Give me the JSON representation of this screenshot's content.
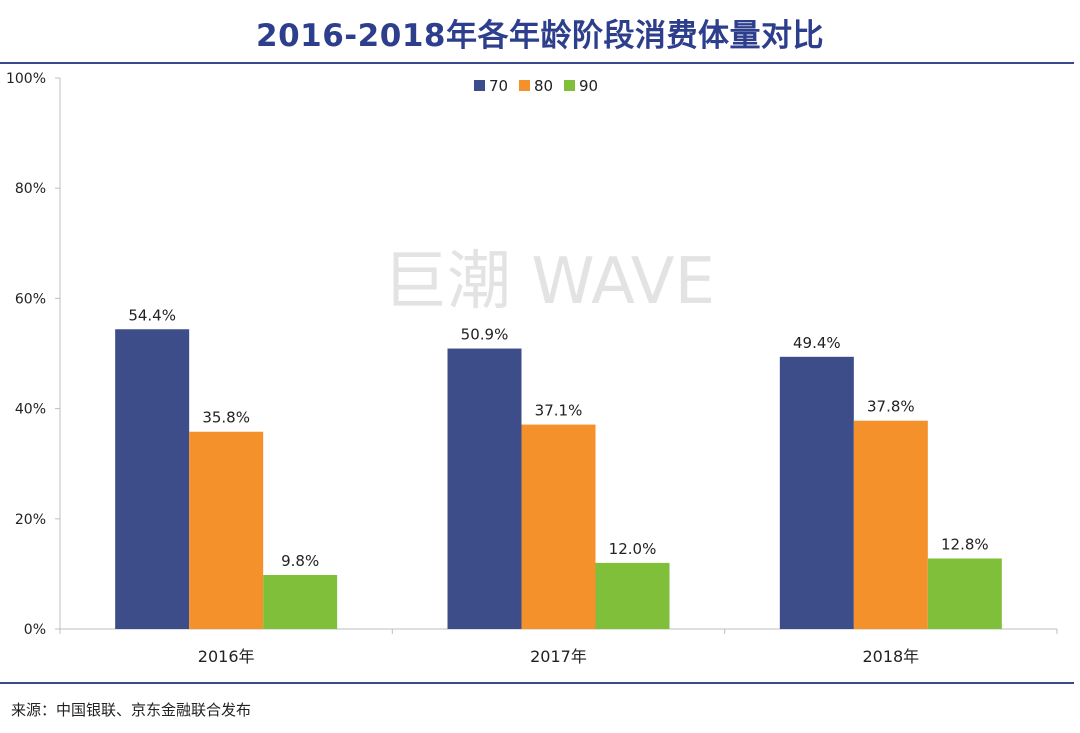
{
  "title": "2016-2018年各年龄阶段消费体量对比",
  "source": "来源：中国银联、京东金融联合发布",
  "watermark": "巨潮 WAVE",
  "colors": {
    "title": "#2d3e8c",
    "rule": "#3b4a8c",
    "axis": "#bfbfbf"
  },
  "chart_data": {
    "type": "bar",
    "categories": [
      "2016年",
      "2017年",
      "2018年"
    ],
    "series": [
      {
        "name": "70",
        "color": "#3d4d8a",
        "values": [
          54.4,
          50.9,
          49.4
        ],
        "labels": [
          "54.4%",
          "50.9%",
          "49.4%"
        ]
      },
      {
        "name": "80",
        "color": "#f5912a",
        "values": [
          35.8,
          37.1,
          37.8
        ],
        "labels": [
          "35.8%",
          "37.1%",
          "37.8%"
        ]
      },
      {
        "name": "90",
        "color": "#80bf3a",
        "values": [
          9.8,
          12.0,
          12.8
        ],
        "labels": [
          "9.8%",
          "12.0%",
          "12.8%"
        ]
      }
    ],
    "ylim": [
      0,
      100
    ],
    "yticks": [
      "0%",
      "20%",
      "40%",
      "60%",
      "80%",
      "100%"
    ],
    "grid": false,
    "legend": "top-center"
  }
}
